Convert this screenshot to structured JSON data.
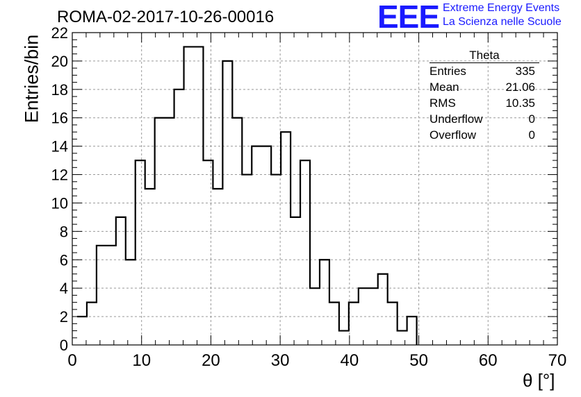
{
  "header": {
    "run_title": "ROMA-02-2017-10-26-00016",
    "logo_text": "EEE",
    "logo_line1": "Extreme Energy Events",
    "logo_line2": "La Scienza nelle Scuole"
  },
  "stats_box": {
    "title": "Theta",
    "rows": [
      {
        "label": "Entries",
        "value": "335"
      },
      {
        "label": "Mean",
        "value": "21.06"
      },
      {
        "label": "RMS",
        "value": "10.35"
      },
      {
        "label": "Underflow",
        "value": "0"
      },
      {
        "label": "Overflow",
        "value": "0"
      }
    ]
  },
  "colors": {
    "logo": "#1a1aff",
    "line": "#000000",
    "grid": "#999999"
  },
  "chart_data": {
    "type": "histogram",
    "xlabel": "θ [°]",
    "ylabel": "Entries/bin",
    "xlim": [
      0,
      70
    ],
    "ylim": [
      0,
      22
    ],
    "x_ticks": [
      0,
      10,
      20,
      30,
      40,
      50,
      60,
      70
    ],
    "y_ticks": [
      0,
      2,
      4,
      6,
      8,
      10,
      12,
      14,
      16,
      18,
      20,
      22
    ],
    "grid": true,
    "bin_width": 1.4,
    "bin_start": 0.7,
    "values": [
      2,
      3,
      7,
      7,
      9,
      6,
      13,
      11,
      16,
      16,
      18,
      21,
      21,
      13,
      11,
      20,
      16,
      12,
      14,
      14,
      12,
      15,
      9,
      13,
      4,
      6,
      3,
      1,
      3,
      4,
      4,
      5,
      3,
      1,
      2
    ]
  }
}
